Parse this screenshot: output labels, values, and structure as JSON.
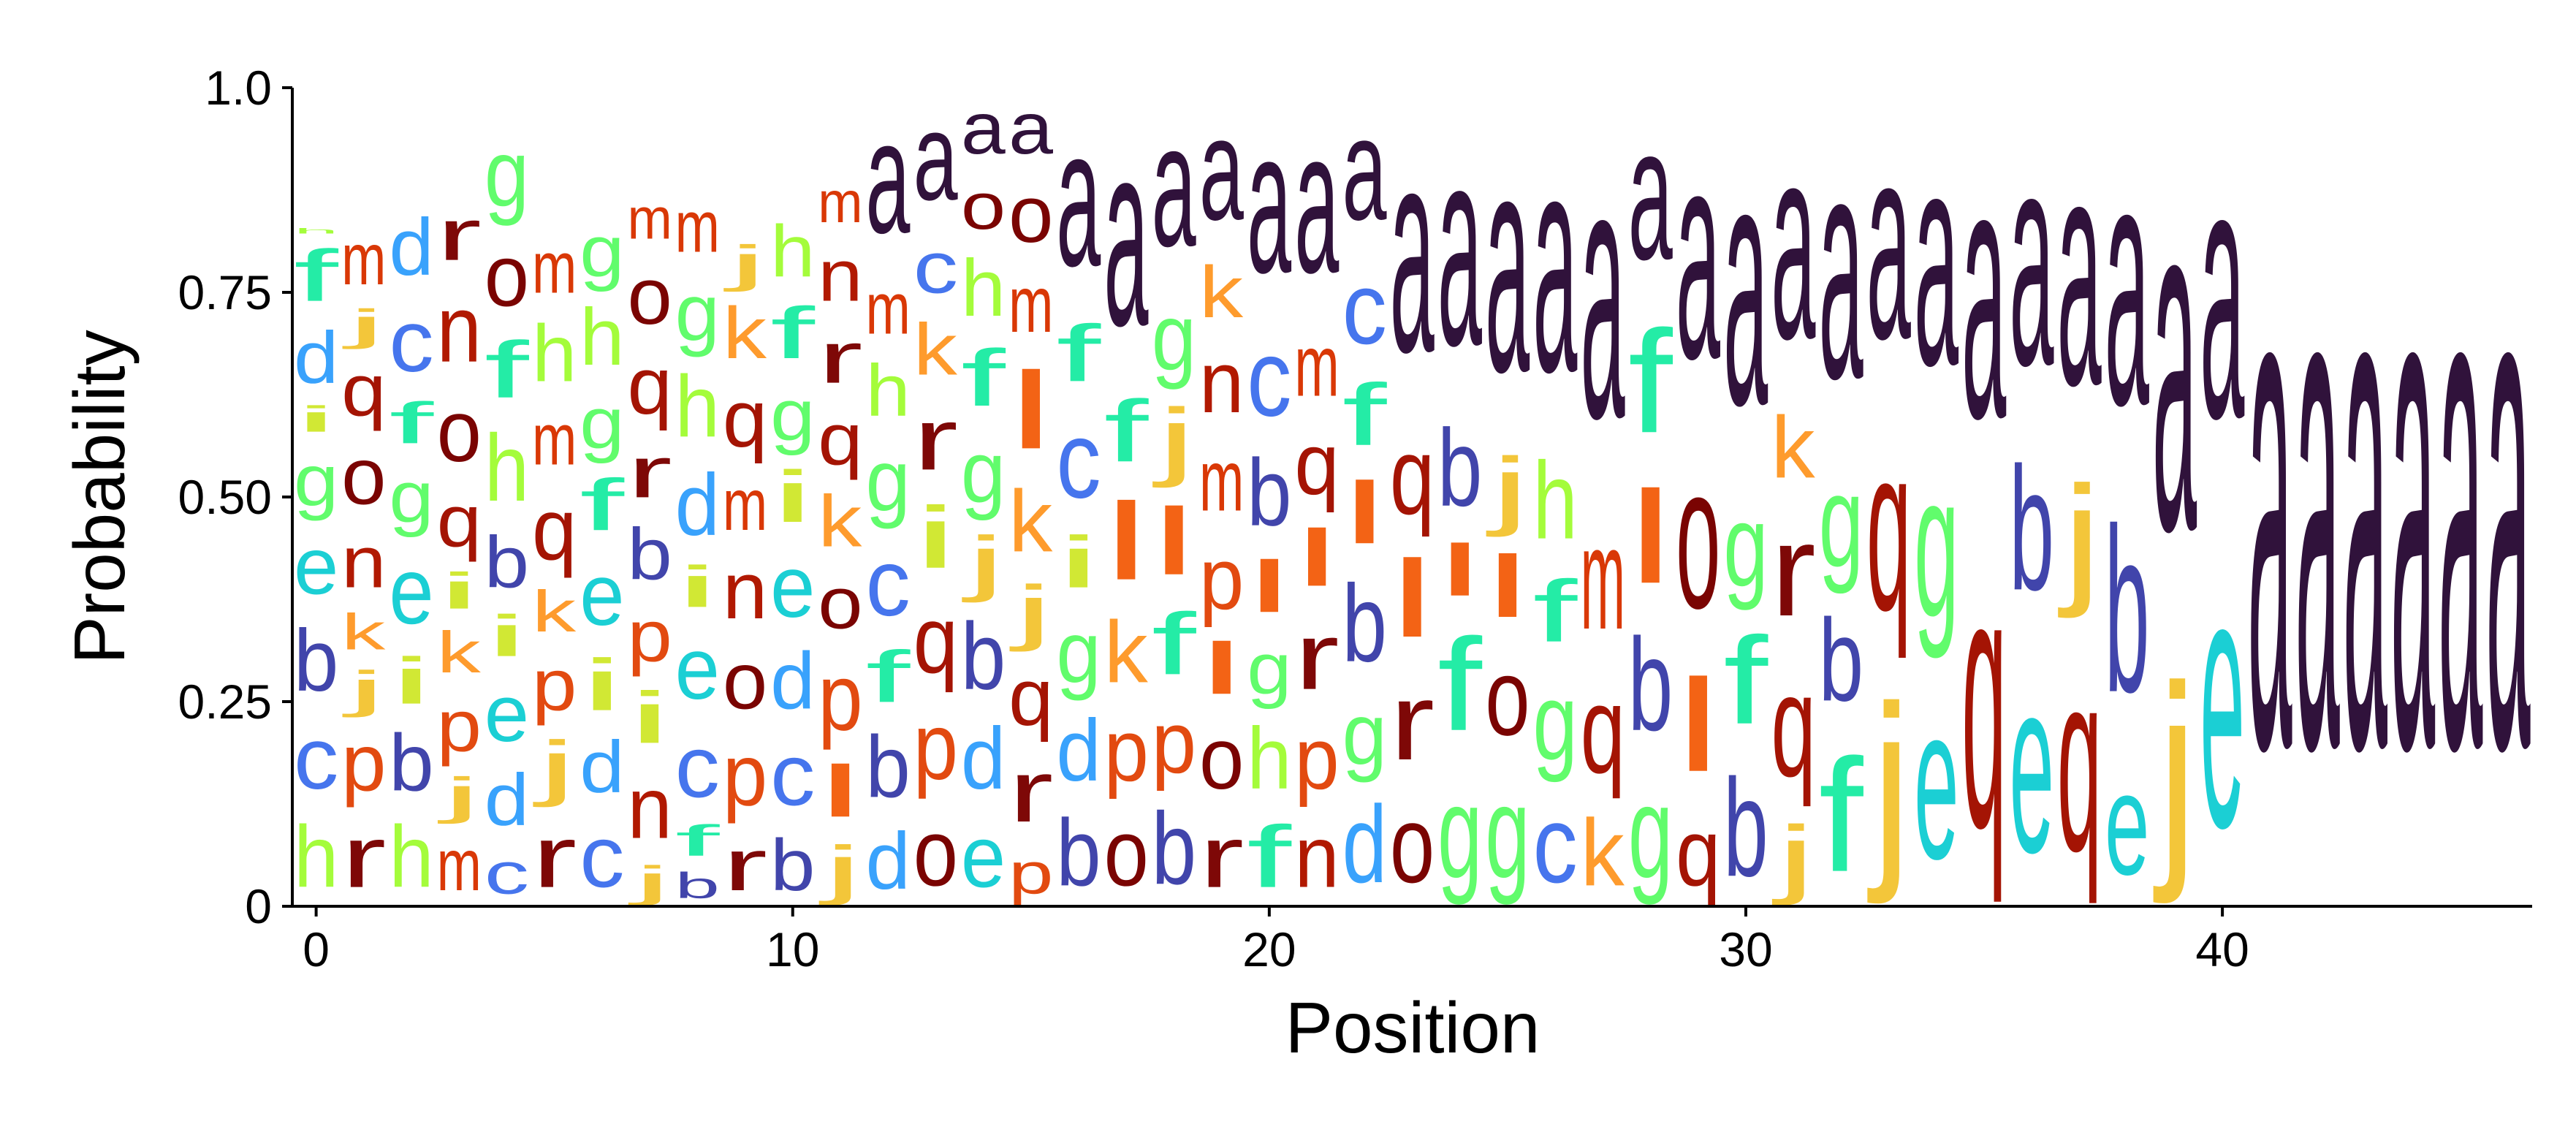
{
  "chart_data": {
    "type": "sequence-logo",
    "title": "",
    "xlabel": "Position",
    "ylabel": "Probability",
    "xlim": [
      -0.5,
      46.5
    ],
    "ylim": [
      0,
      1
    ],
    "x_ticks": [
      0,
      10,
      20,
      30,
      40
    ],
    "y_ticks": [
      0,
      0.25,
      0.5,
      0.75,
      1.0
    ],
    "y_tick_labels": [
      "0",
      "0.25",
      "0.50",
      "0.75",
      "1.0"
    ],
    "grid": false,
    "legend": "none",
    "colors": {
      "a": "#30123b",
      "b": "#4145ab",
      "c": "#4675ed",
      "d": "#39a2fc",
      "e": "#1bcfd4",
      "f": "#24eca6",
      "g": "#61fc6c",
      "h": "#a4fc3b",
      "i": "#d1e834",
      "j": "#f3c63a",
      "k": "#fe9b2d",
      "l": "#f36315",
      "m": "#d93806",
      "n": "#b11901",
      "o": "#7a0402",
      "p": "#e24a10",
      "q": "#a41404",
      "r": "#7e0807"
    },
    "positions": [
      {
        "x": 0,
        "letters": [
          [
            "h",
            0.12
          ],
          [
            "c",
            0.12
          ],
          [
            "b",
            0.12
          ],
          [
            "e",
            0.11
          ],
          [
            "g",
            0.1
          ],
          [
            "i",
            0.05
          ],
          [
            "d",
            0.1
          ],
          [
            "f",
            0.1
          ],
          [
            "h",
            0.01
          ]
        ]
      },
      {
        "x": 1,
        "letters": [
          [
            "r",
            0.12
          ],
          [
            "p",
            0.11
          ],
          [
            "j",
            0.07
          ],
          [
            "k",
            0.07
          ],
          [
            "n",
            0.1
          ],
          [
            "o",
            0.11
          ],
          [
            "q",
            0.1
          ],
          [
            "j",
            0.06
          ],
          [
            "m",
            0.1
          ]
        ]
      },
      {
        "x": 2,
        "letters": [
          [
            "h",
            0.12
          ],
          [
            "b",
            0.11
          ],
          [
            "i",
            0.09
          ],
          [
            "e",
            0.13
          ],
          [
            "g",
            0.1
          ],
          [
            "f",
            0.08
          ],
          [
            "c",
            0.12
          ],
          [
            "d",
            0.11
          ]
        ]
      },
      {
        "x": 3,
        "letters": [
          [
            "m",
            0.1
          ],
          [
            "j",
            0.07
          ],
          [
            "p",
            0.1
          ],
          [
            "k",
            0.08
          ],
          [
            "i",
            0.07
          ],
          [
            "q",
            0.1
          ],
          [
            "o",
            0.12
          ],
          [
            "n",
            0.13
          ],
          [
            "r",
            0.1
          ]
        ]
      },
      {
        "x": 4,
        "letters": [
          [
            "c",
            0.08
          ],
          [
            "d",
            0.1
          ],
          [
            "e",
            0.11
          ],
          [
            "i",
            0.08
          ],
          [
            "b",
            0.1
          ],
          [
            "h",
            0.13
          ],
          [
            "f",
            0.11
          ],
          [
            "o",
            0.12
          ],
          [
            "g",
            0.13
          ]
        ]
      },
      {
        "x": 5,
        "letters": [
          [
            "r",
            0.12
          ],
          [
            "j",
            0.1
          ],
          [
            "p",
            0.1
          ],
          [
            "k",
            0.08
          ],
          [
            "q",
            0.12
          ],
          [
            "m",
            0.1
          ],
          [
            "h",
            0.11
          ],
          [
            "m",
            0.1
          ]
        ]
      },
      {
        "x": 6,
        "letters": [
          [
            "c",
            0.12
          ],
          [
            "d",
            0.1
          ],
          [
            "i",
            0.1
          ],
          [
            "e",
            0.12
          ],
          [
            "f",
            0.1
          ],
          [
            "g",
            0.1
          ],
          [
            "h",
            0.11
          ],
          [
            "g",
            0.1
          ]
        ]
      },
      {
        "x": 7,
        "letters": [
          [
            "j",
            0.06
          ],
          [
            "n",
            0.12
          ],
          [
            "i",
            0.1
          ],
          [
            "p",
            0.1
          ],
          [
            "b",
            0.1
          ],
          [
            "r",
            0.1
          ],
          [
            "q",
            0.11
          ],
          [
            "o",
            0.11
          ],
          [
            "m",
            0.08
          ]
        ]
      },
      {
        "x": 8,
        "letters": [
          [
            "b",
            0.05
          ],
          [
            "f",
            0.06
          ],
          [
            "c",
            0.12
          ],
          [
            "e",
            0.12
          ],
          [
            "i",
            0.08
          ],
          [
            "d",
            0.12
          ],
          [
            "h",
            0.12
          ],
          [
            "g",
            0.11
          ],
          [
            "m",
            0.1
          ]
        ]
      },
      {
        "x": 9,
        "letters": [
          [
            "r",
            0.1
          ],
          [
            "p",
            0.12
          ],
          [
            "o",
            0.11
          ],
          [
            "n",
            0.11
          ],
          [
            "m",
            0.1
          ],
          [
            "q",
            0.11
          ],
          [
            "k",
            0.1
          ],
          [
            "j",
            0.07
          ]
        ]
      },
      {
        "x": 10,
        "letters": [
          [
            "b",
            0.1
          ],
          [
            "c",
            0.12
          ],
          [
            "d",
            0.11
          ],
          [
            "e",
            0.12
          ],
          [
            "i",
            0.1
          ],
          [
            "g",
            0.1
          ],
          [
            "f",
            0.1
          ],
          [
            "h",
            0.1
          ]
        ]
      },
      {
        "x": 11,
        "letters": [
          [
            "j",
            0.09
          ],
          [
            "l",
            0.1
          ],
          [
            "p",
            0.13
          ],
          [
            "o",
            0.1
          ],
          [
            "k",
            0.1
          ],
          [
            "q",
            0.1
          ],
          [
            "r",
            0.1
          ],
          [
            "n",
            0.1
          ],
          [
            "m",
            0.08
          ]
        ]
      },
      {
        "x": 12,
        "letters": [
          [
            "d",
            0.11
          ],
          [
            "b",
            0.12
          ],
          [
            "f",
            0.1
          ],
          [
            "c",
            0.13
          ],
          [
            "g",
            0.12
          ],
          [
            "h",
            0.1
          ],
          [
            "m",
            0.1
          ],
          [
            "a",
            0.22
          ]
        ]
      },
      {
        "x": 13,
        "letters": [
          [
            "o",
            0.13
          ],
          [
            "p",
            0.13
          ],
          [
            "q",
            0.13
          ],
          [
            "i",
            0.12
          ],
          [
            "r",
            0.12
          ],
          [
            "k",
            0.1
          ],
          [
            "c",
            0.1
          ],
          [
            "a",
            0.17
          ]
        ]
      },
      {
        "x": 14,
        "letters": [
          [
            "e",
            0.12
          ],
          [
            "d",
            0.12
          ],
          [
            "b",
            0.13
          ],
          [
            "j",
            0.1
          ],
          [
            "g",
            0.12
          ],
          [
            "f",
            0.11
          ],
          [
            "h",
            0.11
          ],
          [
            "o",
            0.09
          ],
          [
            "a",
            0.1
          ]
        ]
      },
      {
        "x": 15,
        "letters": [
          [
            "p",
            0.08
          ],
          [
            "r",
            0.12
          ],
          [
            "q",
            0.11
          ],
          [
            "j",
            0.1
          ],
          [
            "k",
            0.12
          ],
          [
            "l",
            0.15
          ],
          [
            "m",
            0.11
          ],
          [
            "o",
            0.11
          ],
          [
            "a",
            0.1
          ]
        ]
      },
      {
        "x": 16,
        "letters": [
          [
            "b",
            0.13
          ],
          [
            "d",
            0.12
          ],
          [
            "g",
            0.12
          ],
          [
            "i",
            0.1
          ],
          [
            "c",
            0.15
          ],
          [
            "f",
            0.11
          ],
          [
            "a",
            0.27
          ]
        ]
      },
      {
        "x": 17,
        "letters": [
          [
            "o",
            0.13
          ],
          [
            "p",
            0.12
          ],
          [
            "k",
            0.12
          ],
          [
            "l",
            0.15
          ],
          [
            "f",
            0.12
          ],
          [
            "a",
            0.36
          ]
        ]
      },
      {
        "x": 18,
        "letters": [
          [
            "b",
            0.14
          ],
          [
            "p",
            0.12
          ],
          [
            "f",
            0.12
          ],
          [
            "l",
            0.13
          ],
          [
            "j",
            0.12
          ],
          [
            "g",
            0.13
          ],
          [
            "a",
            0.24
          ]
        ]
      },
      {
        "x": 19,
        "letters": [
          [
            "r",
            0.12
          ],
          [
            "o",
            0.12
          ],
          [
            "l",
            0.1
          ],
          [
            "p",
            0.12
          ],
          [
            "m",
            0.12
          ],
          [
            "n",
            0.12
          ],
          [
            "k",
            0.1
          ],
          [
            "a",
            0.2
          ]
        ]
      },
      {
        "x": 20,
        "letters": [
          [
            "f",
            0.12
          ],
          [
            "h",
            0.12
          ],
          [
            "g",
            0.1
          ],
          [
            "l",
            0.1
          ],
          [
            "b",
            0.13
          ],
          [
            "c",
            0.15
          ],
          [
            "a",
            0.28
          ]
        ]
      },
      {
        "x": 21,
        "letters": [
          [
            "n",
            0.12
          ],
          [
            "p",
            0.12
          ],
          [
            "r",
            0.13
          ],
          [
            "l",
            0.11
          ],
          [
            "q",
            0.12
          ],
          [
            "m",
            0.12
          ],
          [
            "a",
            0.28
          ]
        ]
      },
      {
        "x": 22,
        "letters": [
          [
            "d",
            0.15
          ],
          [
            "g",
            0.12
          ],
          [
            "b",
            0.15
          ],
          [
            "l",
            0.12
          ],
          [
            "f",
            0.12
          ],
          [
            "c",
            0.14
          ],
          [
            "a",
            0.2
          ]
        ]
      },
      {
        "x": 23,
        "letters": [
          [
            "o",
            0.15
          ],
          [
            "r",
            0.15
          ],
          [
            "l",
            0.15
          ],
          [
            "q",
            0.15
          ],
          [
            "a",
            0.4
          ]
        ]
      },
      {
        "x": 24,
        "letters": [
          [
            "g",
            0.18
          ],
          [
            "f",
            0.18
          ],
          [
            "l",
            0.1
          ],
          [
            "b",
            0.15
          ],
          [
            "a",
            0.39
          ]
        ]
      },
      {
        "x": 25,
        "letters": [
          [
            "g",
            0.18
          ],
          [
            "o",
            0.15
          ],
          [
            "l",
            0.12
          ],
          [
            "j",
            0.12
          ],
          [
            "a",
            0.43
          ]
        ]
      },
      {
        "x": 26,
        "letters": [
          [
            "c",
            0.15
          ],
          [
            "g",
            0.15
          ],
          [
            "f",
            0.12
          ],
          [
            "h",
            0.15
          ],
          [
            "a",
            0.43
          ]
        ]
      },
      {
        "x": 27,
        "letters": [
          [
            "k",
            0.13
          ],
          [
            "q",
            0.17
          ],
          [
            "m",
            0.2
          ],
          [
            "a",
            0.5
          ]
        ]
      },
      {
        "x": 28,
        "letters": [
          [
            "g",
            0.18
          ],
          [
            "b",
            0.18
          ],
          [
            "l",
            0.18
          ],
          [
            "f",
            0.2
          ],
          [
            "a",
            0.26
          ]
        ]
      },
      {
        "x": 29,
        "letters": [
          [
            "q",
            0.13
          ],
          [
            "l",
            0.18
          ],
          [
            "o",
            0.28
          ],
          [
            "a",
            0.41
          ]
        ]
      },
      {
        "x": 30,
        "letters": [
          [
            "b",
            0.19
          ],
          [
            "f",
            0.17
          ],
          [
            "g",
            0.16
          ],
          [
            "a",
            0.48
          ]
        ]
      },
      {
        "x": 31,
        "letters": [
          [
            "j",
            0.12
          ],
          [
            "q",
            0.2
          ],
          [
            "r",
            0.18
          ],
          [
            "k",
            0.12
          ],
          [
            "a",
            0.38
          ]
        ]
      },
      {
        "x": 32,
        "letters": [
          [
            "f",
            0.22
          ],
          [
            "b",
            0.16
          ],
          [
            "g",
            0.18
          ],
          [
            "a",
            0.44
          ]
        ]
      },
      {
        "x": 33,
        "letters": [
          [
            "j",
            0.3
          ],
          [
            "q",
            0.32
          ],
          [
            "a",
            0.38
          ]
        ]
      },
      {
        "x": 34,
        "letters": [
          [
            "e",
            0.3
          ],
          [
            "g",
            0.28
          ],
          [
            "a",
            0.42
          ]
        ]
      },
      {
        "x": 35,
        "letters": [
          [
            "q",
            0.5
          ],
          [
            "a",
            0.5
          ]
        ]
      },
      {
        "x": 36,
        "letters": [
          [
            "e",
            0.34
          ],
          [
            "b",
            0.24
          ],
          [
            "a",
            0.42
          ]
        ]
      },
      {
        "x": 37,
        "letters": [
          [
            "q",
            0.35
          ],
          [
            "j",
            0.2
          ],
          [
            "a",
            0.45
          ]
        ]
      },
      {
        "x": 38,
        "letters": [
          [
            "e",
            0.2
          ],
          [
            "b",
            0.32
          ],
          [
            "a",
            0.48
          ]
        ]
      },
      {
        "x": 39,
        "letters": [
          [
            "j",
            0.33
          ],
          [
            "a",
            0.67
          ]
        ]
      },
      {
        "x": 40,
        "letters": [
          [
            "e",
            0.5
          ],
          [
            "a",
            0.5
          ]
        ]
      },
      {
        "x": 41,
        "letters": [
          [
            "a",
            1.0
          ]
        ]
      },
      {
        "x": 42,
        "letters": [
          [
            "a",
            1.0
          ]
        ]
      },
      {
        "x": 43,
        "letters": [
          [
            "a",
            1.0
          ]
        ]
      },
      {
        "x": 44,
        "letters": [
          [
            "a",
            1.0
          ]
        ]
      },
      {
        "x": 45,
        "letters": [
          [
            "a",
            1.0
          ]
        ]
      },
      {
        "x": 46,
        "letters": [
          [
            "a",
            1.0
          ]
        ]
      }
    ]
  }
}
